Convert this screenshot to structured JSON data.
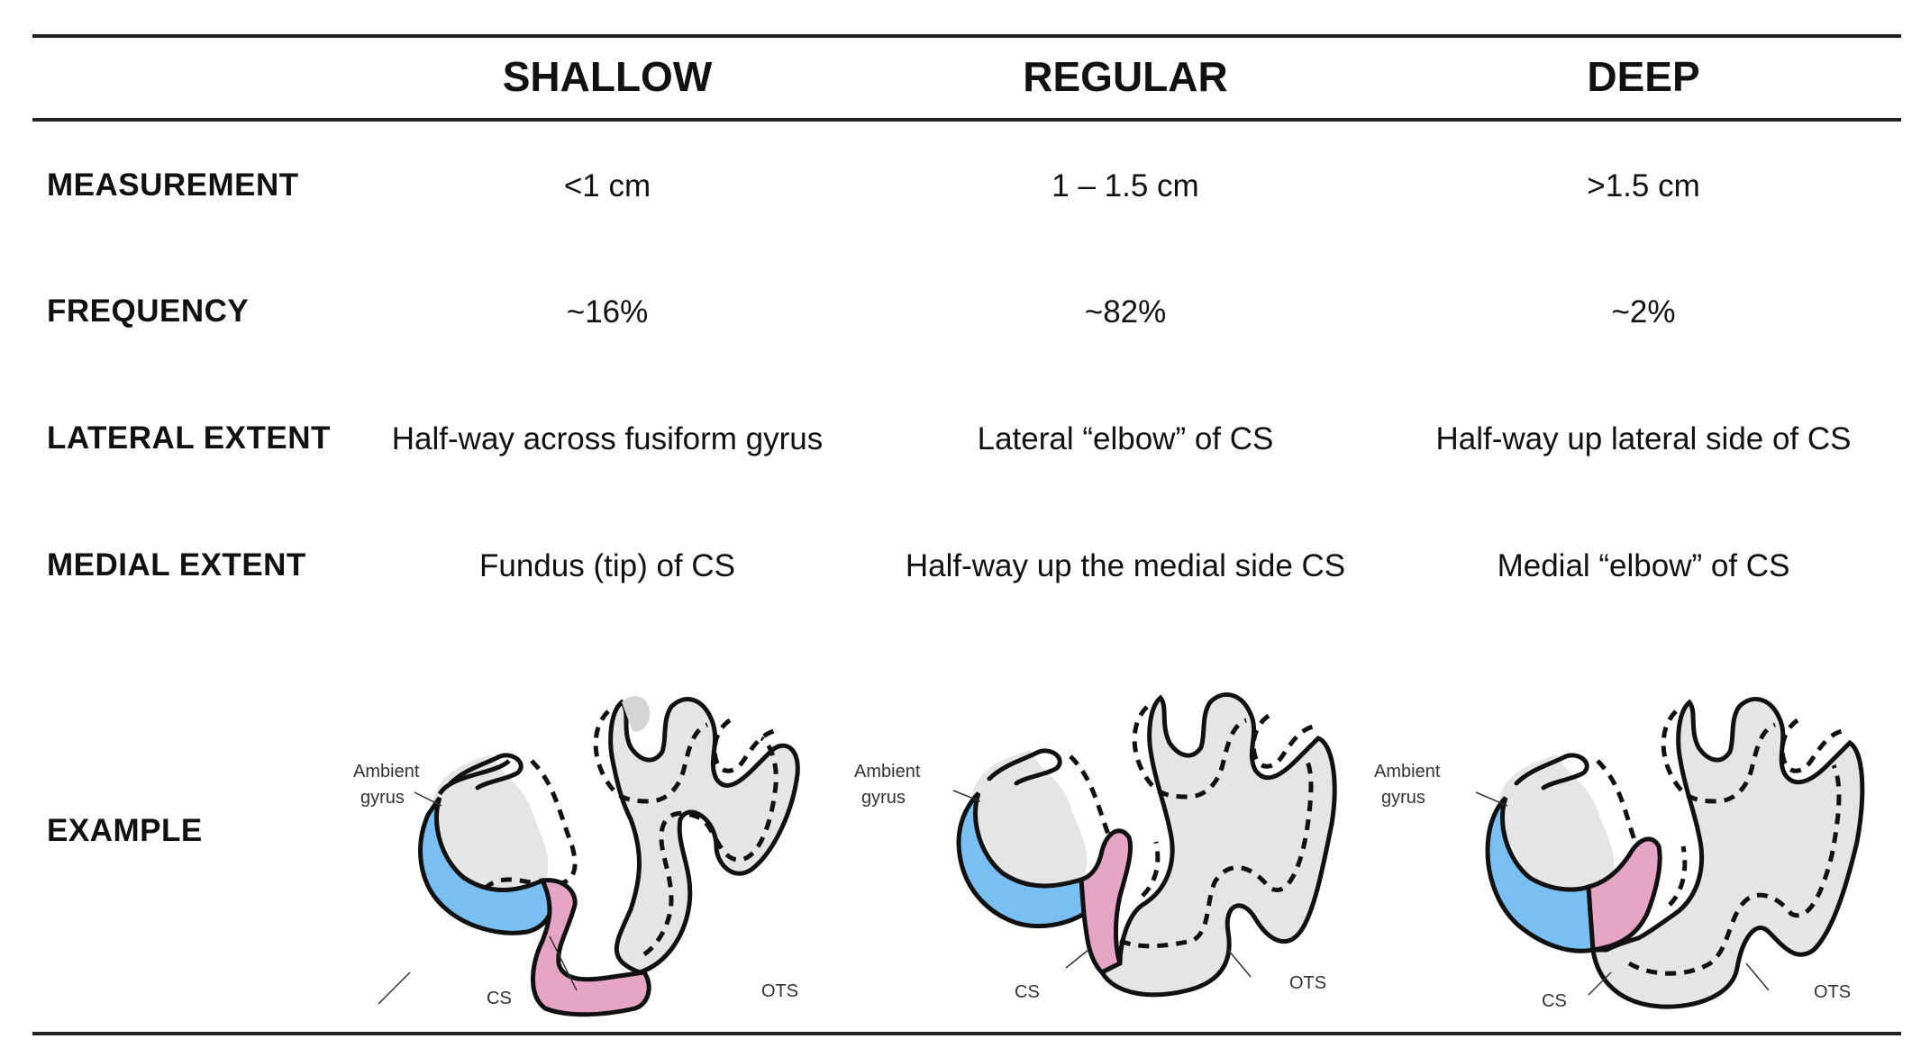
{
  "table": {
    "columns": [
      "SHALLOW",
      "REGULAR",
      "DEEP"
    ],
    "rows": [
      {
        "label": "MEASUREMENT",
        "values": [
          "<1 cm",
          "1 – 1.5 cm",
          ">1.5 cm"
        ]
      },
      {
        "label": "FREQUENCY",
        "values": [
          "~16%",
          "~82%",
          "~2%"
        ]
      },
      {
        "label": "LATERAL EXTENT",
        "values": [
          "Half-way across fusiform gyrus",
          "Lateral “elbow” of CS",
          "Half-way up lateral side of CS"
        ]
      },
      {
        "label": "MEDIAL EXTENT",
        "values": [
          "Fundus (tip) of CS",
          "Half-way up the medial side CS",
          "Medial “elbow” of CS"
        ]
      }
    ],
    "example_label": "EXAMPLE"
  },
  "diagram_labels": {
    "ambient_line1": "Ambient",
    "ambient_line2": "gyrus",
    "cs": "CS",
    "ots": "OTS"
  },
  "colors": {
    "blue_region": "#79bff1",
    "pink_region": "#e7a5c6",
    "gray_tissue": "#e5e5e5",
    "outline": "#111111"
  }
}
